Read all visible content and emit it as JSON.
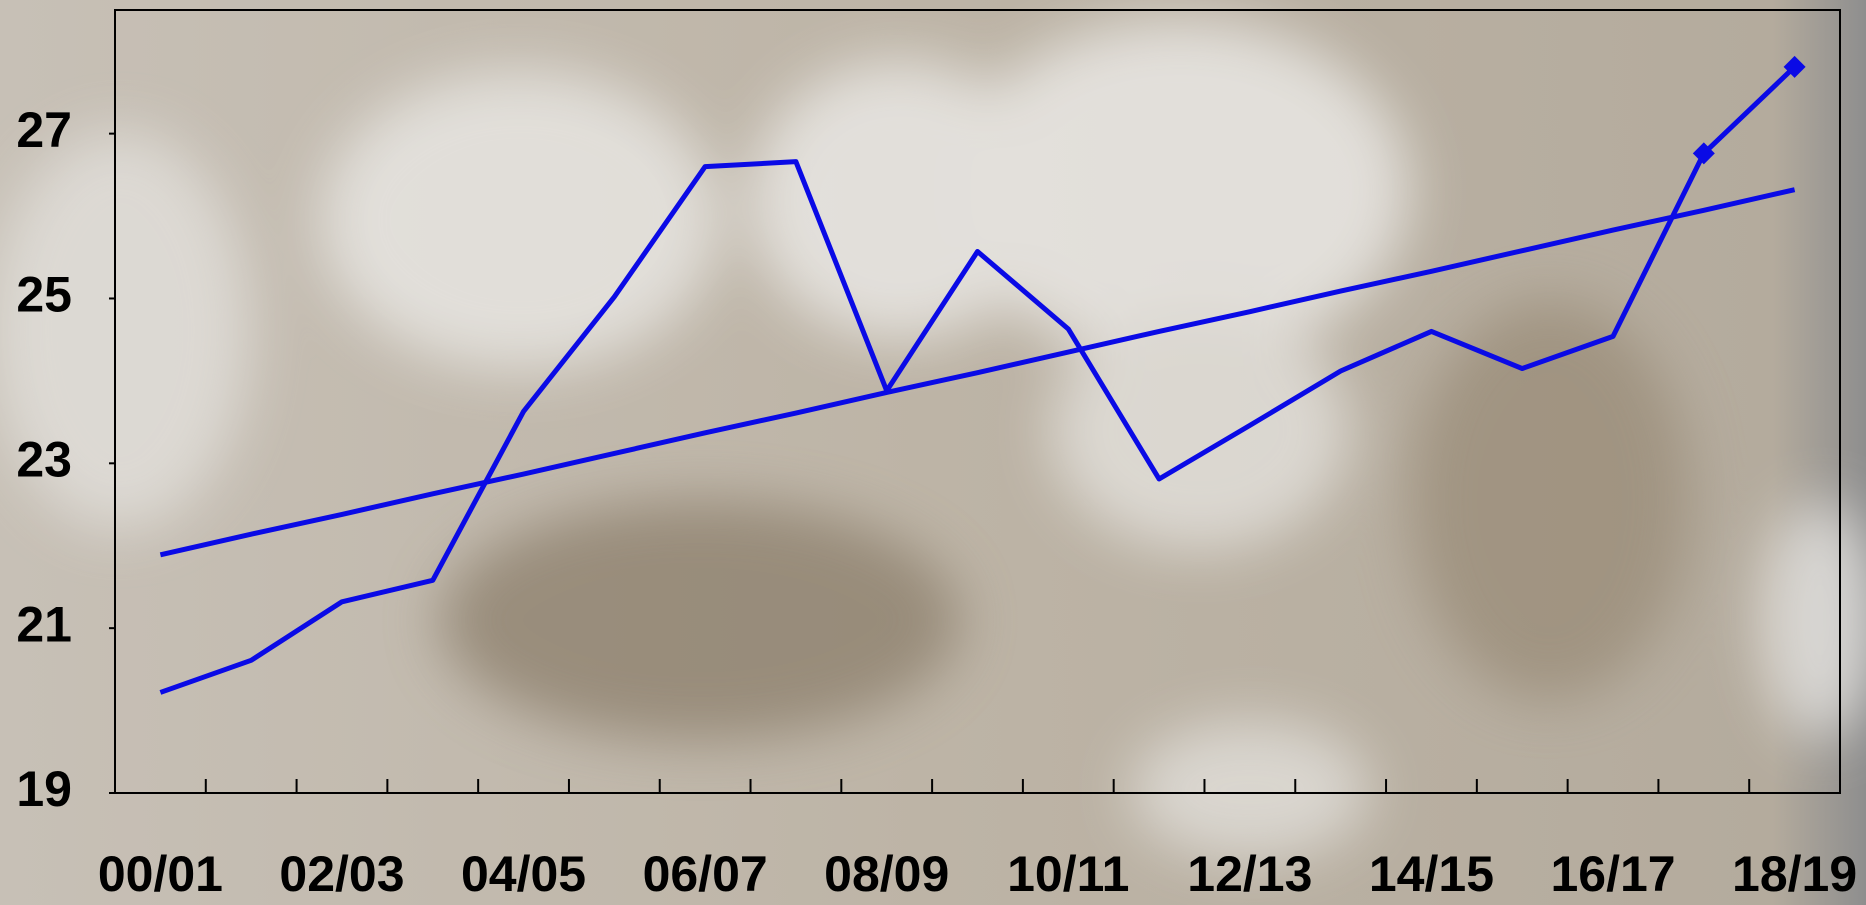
{
  "chart_data": {
    "type": "line",
    "categories": [
      "00/01",
      null,
      "02/03",
      null,
      "04/05",
      null,
      "06/07",
      null,
      "08/09",
      null,
      "10/11",
      null,
      "12/13",
      null,
      "14/15",
      null,
      "16/17",
      null,
      "18/19"
    ],
    "series": [
      {
        "color": "#0a0ae6",
        "values": [
          20.22,
          20.61,
          21.32,
          21.58,
          23.63,
          25.02,
          26.6,
          26.66,
          23.88,
          25.57,
          24.63,
          22.81,
          23.46,
          24.12,
          24.6,
          24.15,
          24.54,
          26.76,
          null
        ]
      },
      {
        "color": "#0a0ae6",
        "marker": "diamond",
        "values": [
          null,
          null,
          null,
          null,
          null,
          null,
          null,
          null,
          null,
          null,
          null,
          null,
          null,
          null,
          null,
          null,
          null,
          26.76,
          27.81
        ]
      },
      {
        "color": "#0a0ae6",
        "values": [
          21.89,
          22.14,
          22.38,
          22.63,
          22.87,
          23.12,
          23.37,
          23.61,
          23.86,
          24.1,
          24.35,
          24.6,
          24.84,
          25.09,
          25.33,
          25.58,
          25.83,
          26.07,
          26.32
        ]
      }
    ],
    "ylim": [
      19,
      28.5
    ],
    "yticks": [
      19,
      21,
      23,
      25,
      27
    ],
    "grid": false
  }
}
